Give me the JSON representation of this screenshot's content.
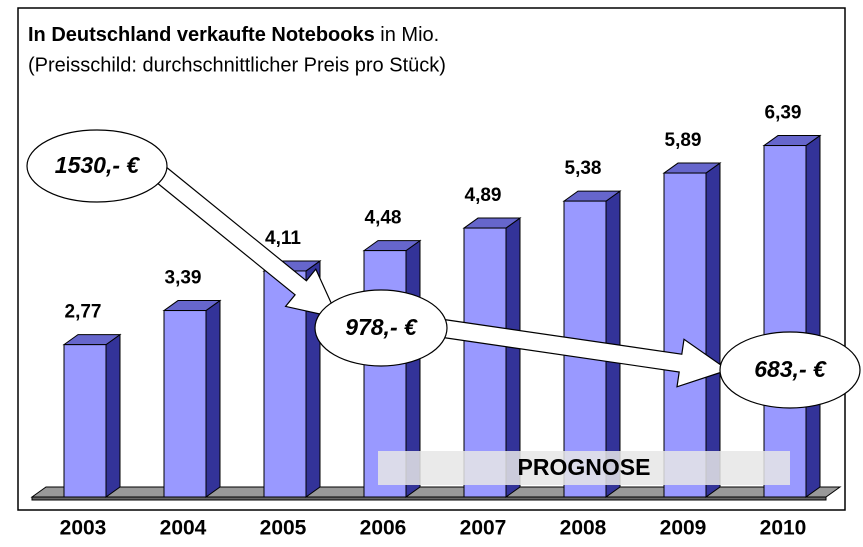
{
  "chart_data": {
    "type": "bar3d",
    "title": "In Deutschland verkaufte Notebooks",
    "title_unit": " in Mio.",
    "subtitle": "(Preisschild: durchschnittlicher Preis pro Stück)",
    "categories": [
      "2003",
      "2004",
      "2005",
      "2006",
      "2007",
      "2008",
      "2009",
      "2010"
    ],
    "values": [
      2.77,
      3.39,
      4.11,
      4.48,
      4.89,
      5.38,
      5.89,
      6.39
    ],
    "value_labels": [
      "2,77",
      "3,39",
      "4,11",
      "4,48",
      "4,89",
      "5,38",
      "5,89",
      "6,39"
    ],
    "color": "#9999ff",
    "ylim": [
      0,
      8
    ],
    "annotations": [
      "1530,- €",
      "978,- €",
      "683,- €",
      "PROGNOSE"
    ]
  }
}
